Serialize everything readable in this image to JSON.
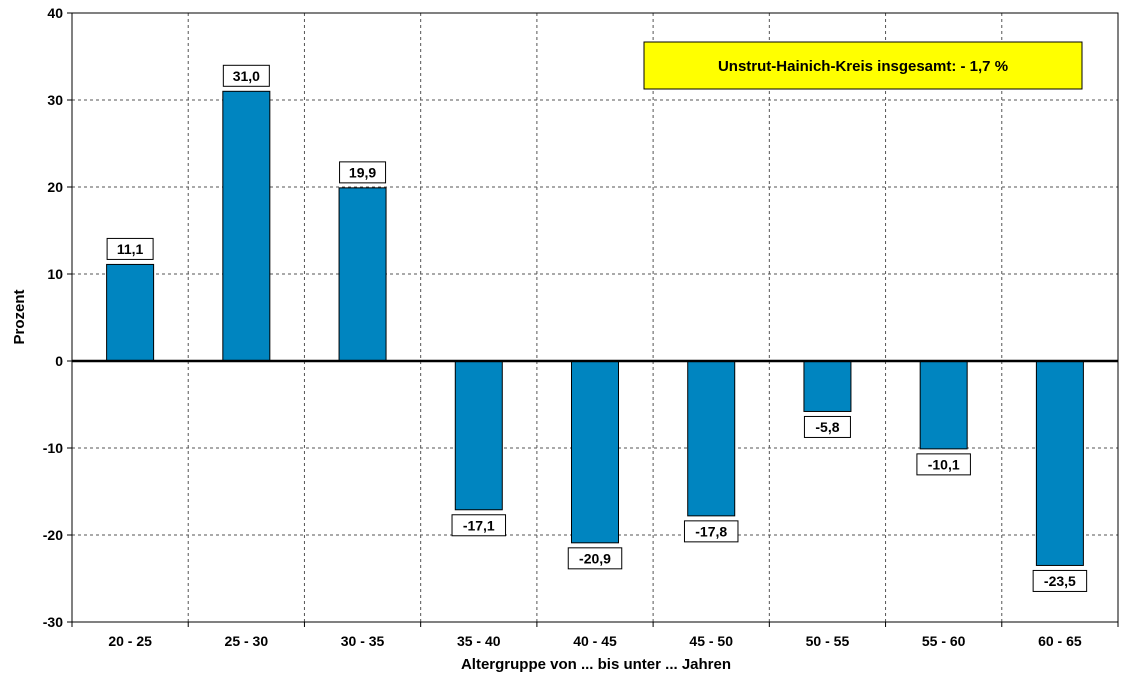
{
  "chart_data": {
    "type": "bar",
    "categories": [
      "20 - 25",
      "25 - 30",
      "30 - 35",
      "35 - 40",
      "40 - 45",
      "45 - 50",
      "50 - 55",
      "55 - 60",
      "60 - 65"
    ],
    "values": [
      11.1,
      31.0,
      19.9,
      -17.1,
      -20.9,
      -17.8,
      -5.8,
      -10.1,
      -23.5
    ],
    "data_labels": [
      "11,1",
      "31,0",
      "19,9",
      "-17,1",
      "-20,9",
      "-17,8",
      "-5,8",
      "-10,1",
      "-23,5"
    ],
    "xlabel": "Altergruppe von ... bis unter ... Jahren",
    "ylabel": "Prozent",
    "ylim": [
      -30,
      40
    ],
    "yticks": [
      -30,
      -20,
      -10,
      0,
      10,
      20,
      30,
      40
    ],
    "grid": true,
    "grid_style": "dashed",
    "bar_color": "#0085C0",
    "annotation": {
      "text": "Unstrut-Hainich-Kreis insgesamt: - 1,7 %",
      "background": "#FFFF00",
      "placement": "top-right"
    }
  }
}
